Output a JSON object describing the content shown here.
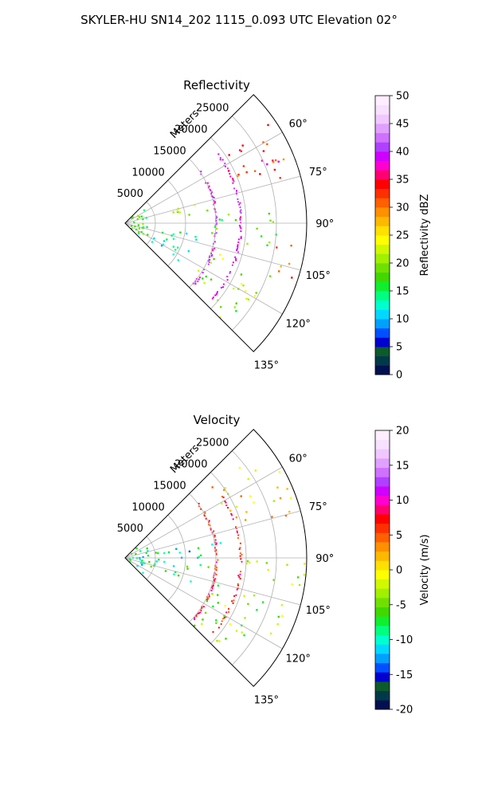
{
  "suptitle": "SKYLER-HU  SN14_202  1115_0.093 UTC Elevation 02°",
  "chart_data": [
    {
      "type": "heatmap",
      "title": "Reflectivity",
      "projection": "polar sector (PPI)",
      "range_label": "Meters",
      "range_ticks": [
        5000,
        10000,
        15000,
        20000,
        25000
      ],
      "range_max": 30000,
      "azimuth_range_deg": [
        45,
        135
      ],
      "azimuth_ticks": [
        "60°",
        "75°",
        "90°",
        "105°",
        "120°",
        "135°"
      ],
      "grid": true,
      "colorbar": {
        "label": "Reflectivity dBZ",
        "min": 0,
        "max": 50,
        "ticks": [
          0,
          5,
          10,
          15,
          20,
          25,
          30,
          35,
          40,
          45,
          50
        ],
        "colors": [
          "#001050",
          "#003a4a",
          "#0d5a2a",
          "#0000d0",
          "#0050ff",
          "#00a0ff",
          "#00d8ff",
          "#00ffd0",
          "#00ff80",
          "#10ee30",
          "#40d800",
          "#70e000",
          "#a0f000",
          "#d0f800",
          "#ffff00",
          "#ffe000",
          "#ffb800",
          "#ff9000",
          "#ff6000",
          "#ff3000",
          "#ff0000",
          "#ff0070",
          "#ff00d0",
          "#d000ff",
          "#b040ff",
          "#d070ff",
          "#e0a0ff",
          "#f0c8ff",
          "#f8e0ff",
          "#ffeeff"
        ]
      },
      "echo_regions": [
        {
          "az": [
            52,
            70
          ],
          "r": [
            18000,
            30000
          ],
          "value": 32
        },
        {
          "az": [
            62,
            74
          ],
          "r": [
            24000,
            30000
          ],
          "value": 36
        },
        {
          "az": [
            45,
            135
          ],
          "r": [
            500,
            4000
          ],
          "value": 17
        },
        {
          "az": [
            72,
            84
          ],
          "r": [
            8000,
            16000
          ],
          "value": 20
        },
        {
          "az": [
            90,
            125
          ],
          "r": [
            5000,
            12000
          ],
          "value": 13
        },
        {
          "az": [
            84,
            100
          ],
          "r": [
            14000,
            26000
          ],
          "value": 18
        },
        {
          "az": [
            96,
            108
          ],
          "r": [
            24000,
            30000
          ],
          "value": 31
        },
        {
          "az": [
            108,
            122
          ],
          "r": [
            15000,
            28000
          ],
          "value": 21
        },
        {
          "az": [
            122,
            135
          ],
          "r": [
            14000,
            24000
          ],
          "value": 20
        }
      ]
    },
    {
      "type": "heatmap",
      "title": "Velocity",
      "projection": "polar sector (PPI)",
      "range_label": "Meters",
      "range_ticks": [
        5000,
        10000,
        15000,
        20000,
        25000
      ],
      "range_max": 30000,
      "azimuth_range_deg": [
        45,
        135
      ],
      "azimuth_ticks": [
        "60°",
        "75°",
        "90°",
        "105°",
        "120°",
        "135°"
      ],
      "grid": true,
      "colorbar": {
        "label": "Velocity (m/s)",
        "min": -20,
        "max": 20,
        "ticks": [
          -20,
          -15,
          -10,
          -5,
          0,
          5,
          10,
          15,
          20
        ],
        "colors": [
          "#001050",
          "#003a4a",
          "#0d5a2a",
          "#0000d0",
          "#0050ff",
          "#00a0ff",
          "#00d8ff",
          "#00ffd0",
          "#00ff80",
          "#10ee30",
          "#40d800",
          "#70e000",
          "#a0f000",
          "#d0f800",
          "#ffff00",
          "#ffe000",
          "#ffb800",
          "#ff9000",
          "#ff6000",
          "#ff3000",
          "#ff0000",
          "#ff0070",
          "#ff00d0",
          "#d000ff",
          "#b040ff",
          "#d070ff",
          "#e0a0ff",
          "#f0c8ff",
          "#f8e0ff",
          "#ffeeff"
        ]
      },
      "echo_regions": [
        {
          "az": [
            50,
            75
          ],
          "r": [
            18000,
            30000
          ],
          "value": 1
        },
        {
          "az": [
            45,
            135
          ],
          "r": [
            500,
            4000
          ],
          "value": -9
        },
        {
          "az": [
            75,
            90
          ],
          "r": [
            5000,
            17000
          ],
          "value": -10
        },
        {
          "az": [
            90,
            110
          ],
          "r": [
            4000,
            14000
          ],
          "value": -8
        },
        {
          "az": [
            86,
            100
          ],
          "r": [
            18000,
            30000
          ],
          "value": -2
        },
        {
          "az": [
            105,
            125
          ],
          "r": [
            15000,
            28000
          ],
          "value": -4
        },
        {
          "az": [
            122,
            135
          ],
          "r": [
            14000,
            24000
          ],
          "value": -5
        }
      ]
    }
  ]
}
